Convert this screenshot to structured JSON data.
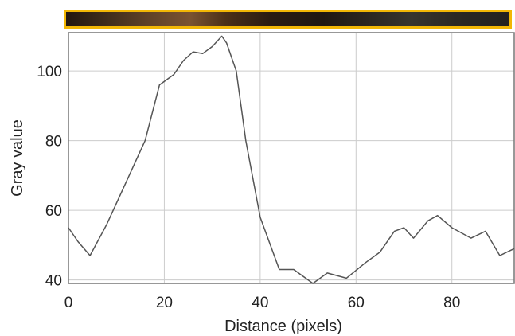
{
  "chart_data": {
    "type": "line",
    "xlabel": "Distance (pixels)",
    "ylabel": "Gray value",
    "xlim": [
      0,
      93
    ],
    "ylim": [
      39,
      111
    ],
    "grid": true,
    "x_ticks": [
      0,
      20,
      40,
      60,
      80
    ],
    "y_ticks": [
      40,
      60,
      80,
      100
    ],
    "x": [
      0,
      2,
      4.5,
      8,
      12,
      16,
      19,
      22,
      24,
      26,
      28,
      30,
      32,
      33,
      35,
      37,
      40,
      44,
      47,
      50,
      51,
      54,
      58,
      62,
      65,
      68,
      70,
      72,
      75,
      77,
      80,
      84,
      87,
      90,
      93
    ],
    "values": [
      55,
      51,
      47,
      56,
      68,
      80,
      96,
      99,
      103,
      105.5,
      105,
      107,
      110,
      108,
      100,
      80,
      58,
      43,
      43,
      40,
      39,
      42,
      40.5,
      45,
      48,
      54,
      55,
      52,
      57,
      58.5,
      55,
      52,
      54,
      47,
      49
    ]
  },
  "colors": {
    "line": "#555555",
    "grid": "#cccccc",
    "frame": "#777777",
    "strip_border": "#f2b705"
  }
}
